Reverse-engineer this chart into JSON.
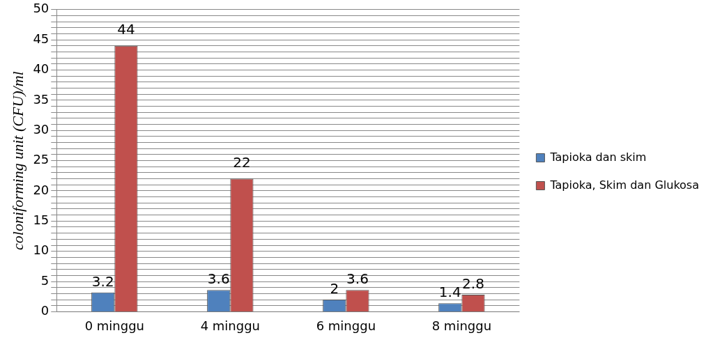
{
  "chart_data": {
    "type": "bar",
    "ylabel": "coloniforming unit (CFU)/ml",
    "categories": [
      "0 minggu",
      "4 minggu",
      "6 minggu",
      "8 minggu"
    ],
    "series": [
      {
        "name": "Tapioka dan skim",
        "color": "#4f81bd",
        "values": [
          3.2,
          3.6,
          2,
          1.4
        ]
      },
      {
        "name": "Tapioka, Skim dan Glukosa",
        "color": "#c0504d",
        "values": [
          44,
          22,
          3.6,
          2.8
        ]
      }
    ],
    "ylim": [
      0,
      50
    ],
    "yticks": [
      0,
      {
        "value": 1,
        "label": null
      },
      {
        "value": 2,
        "label": null
      },
      {
        "value": 3,
        "label": null
      },
      {
        "value": 4,
        "label": null
      },
      5,
      {
        "value": 6,
        "label": null
      },
      {
        "value": 7,
        "label": null
      },
      {
        "value": 8,
        "label": null
      },
      {
        "value": 9,
        "label": null
      },
      10,
      {
        "value": 11,
        "label": null
      },
      {
        "value": 12,
        "label": null
      },
      {
        "value": 13,
        "label": null
      },
      {
        "value": 14,
        "label": null
      },
      15,
      {
        "value": 16,
        "label": null
      },
      {
        "value": 17,
        "label": null
      },
      {
        "value": 18,
        "label": null
      },
      {
        "value": 19,
        "label": null
      },
      20,
      {
        "value": 21,
        "label": null
      },
      {
        "value": 22,
        "label": null
      },
      {
        "value": 23,
        "label": null
      },
      {
        "value": 24,
        "label": null
      },
      25,
      {
        "value": 26,
        "label": null
      },
      {
        "value": 27,
        "label": null
      },
      {
        "value": 28,
        "label": null
      },
      {
        "value": 29,
        "label": null
      },
      30,
      {
        "value": 31,
        "label": null
      },
      {
        "value": 32,
        "label": null
      },
      {
        "value": 33,
        "label": null
      },
      {
        "value": 34,
        "label": null
      },
      35,
      {
        "value": 36,
        "label": null
      },
      {
        "value": 37,
        "label": null
      },
      {
        "value": 38,
        "label": null
      },
      {
        "value": 39,
        "label": null
      },
      40,
      {
        "value": 41,
        "label": null
      },
      {
        "value": 42,
        "label": null
      },
      {
        "value": 43,
        "label": null
      },
      {
        "value": 44,
        "label": null
      },
      45,
      {
        "value": 46,
        "label": null
      },
      {
        "value": 47,
        "label": null
      },
      {
        "value": 48,
        "label": null
      },
      {
        "value": 49,
        "label": null
      },
      50
    ],
    "grid": "y",
    "legend": "right",
    "data_labels": true
  }
}
